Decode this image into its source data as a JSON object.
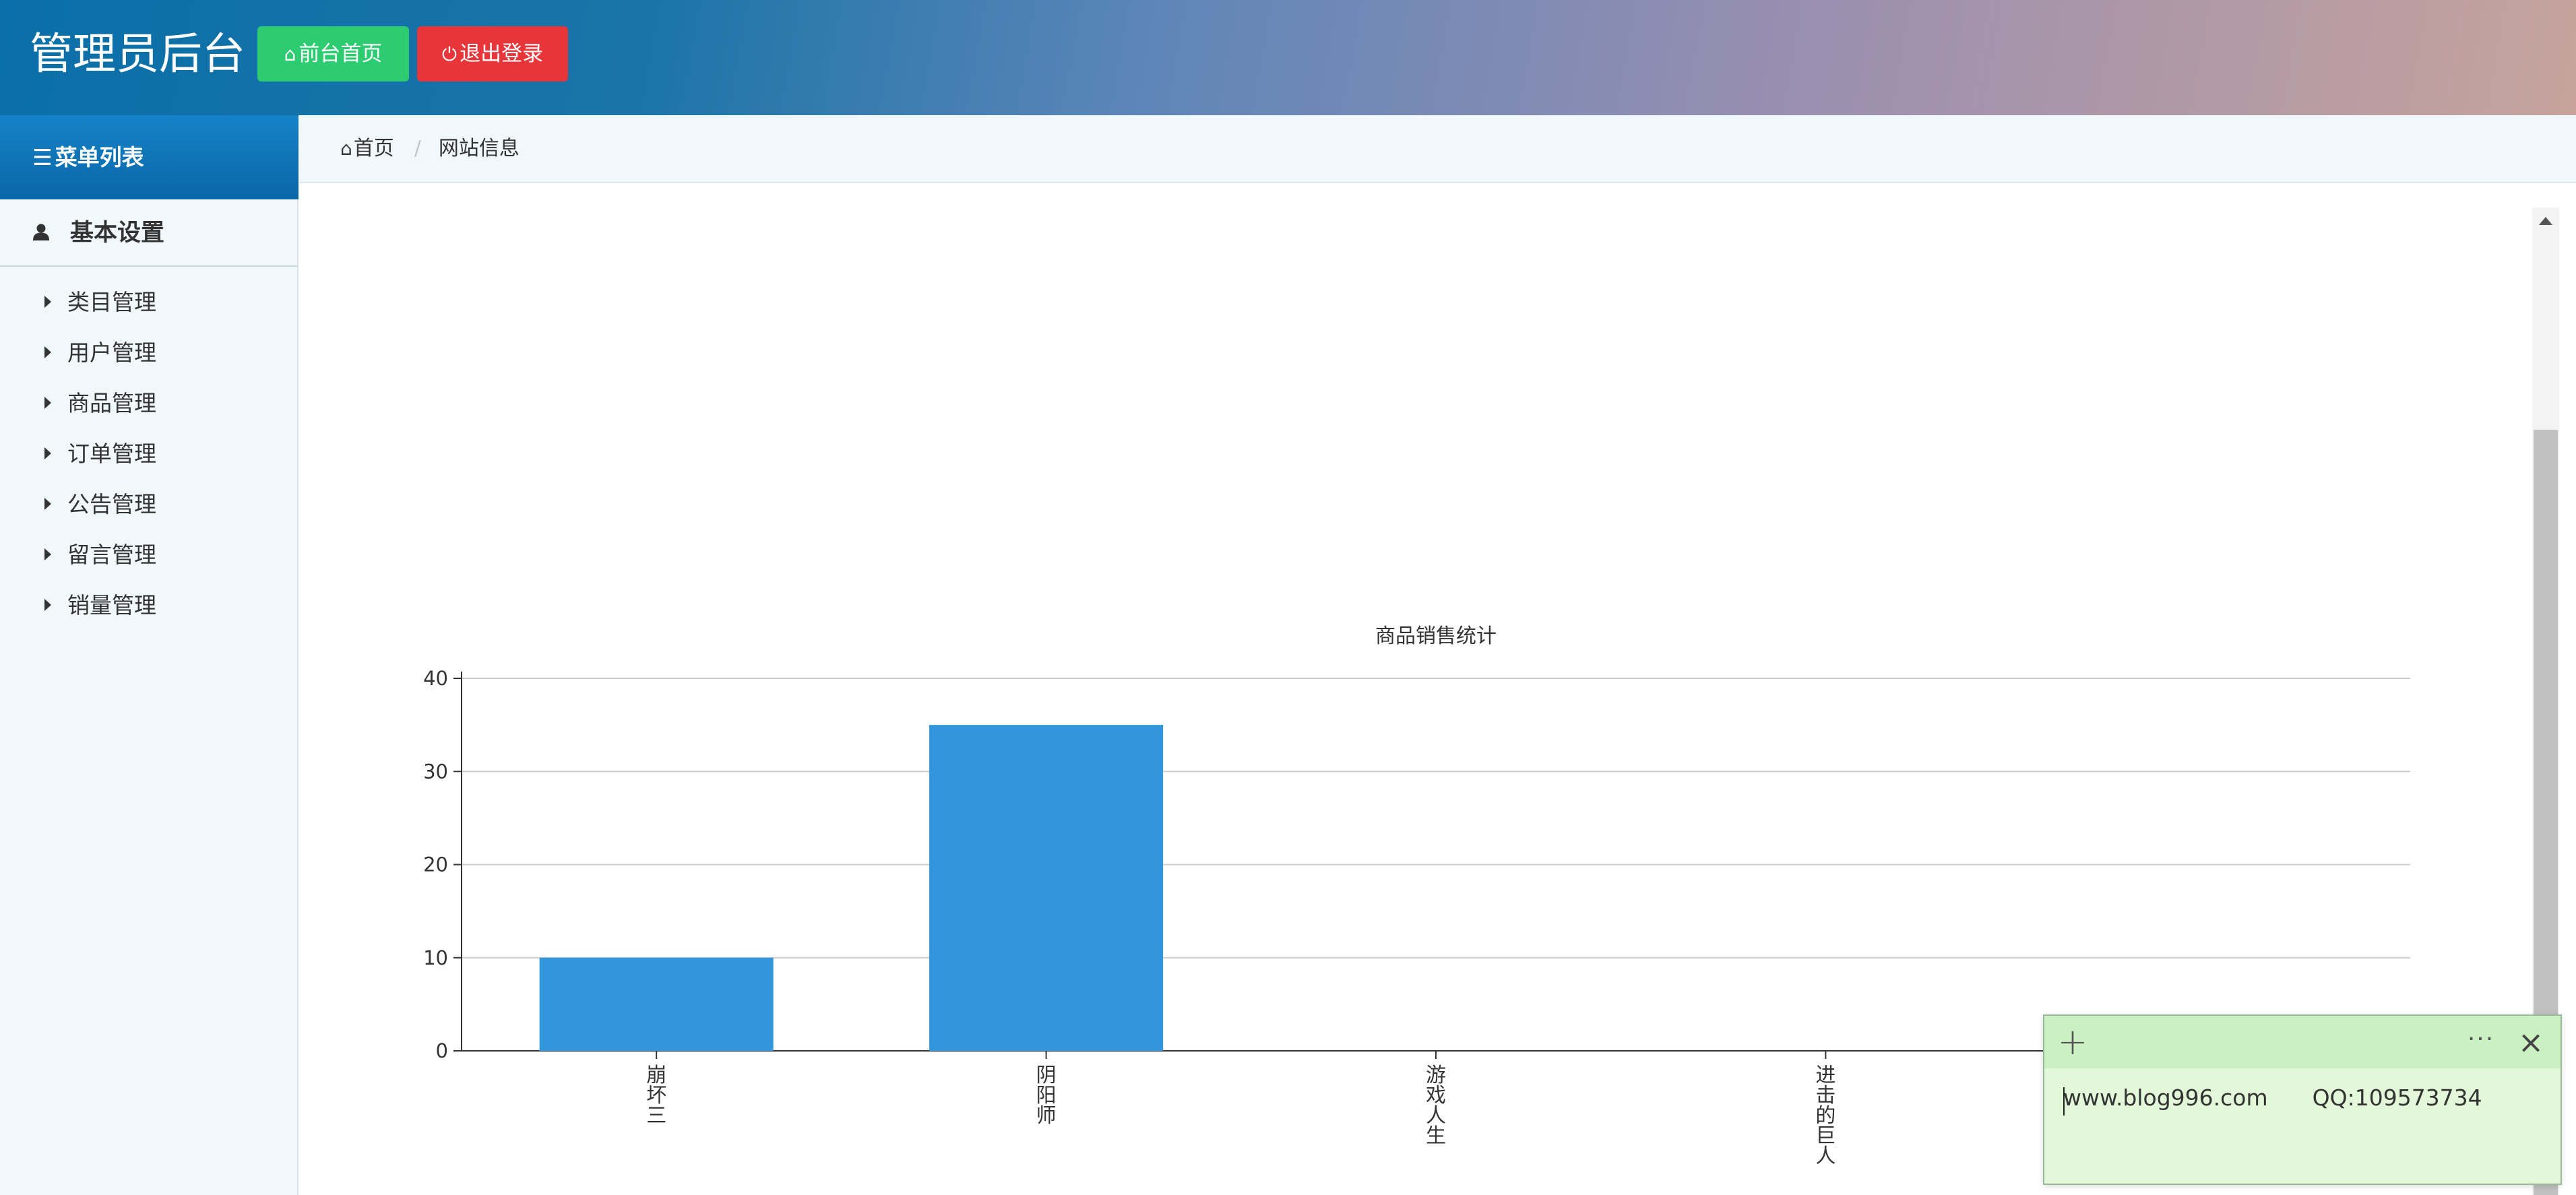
{
  "header": {
    "brand": "管理员后台",
    "home_button": "前台首页",
    "logout_button": "退出登录"
  },
  "sidebar": {
    "title": "菜单列表",
    "group": "基本设置",
    "items": [
      {
        "label": "类目管理"
      },
      {
        "label": "用户管理"
      },
      {
        "label": "商品管理"
      },
      {
        "label": "订单管理"
      },
      {
        "label": "公告管理"
      },
      {
        "label": "留言管理"
      },
      {
        "label": "销量管理"
      }
    ]
  },
  "breadcrumb": {
    "home": "首页",
    "current": "网站信息"
  },
  "note": {
    "website": "www.blog996.com",
    "qq": "QQ:109573734"
  },
  "colors": {
    "bar": "#3296dc",
    "home_button": "#2ecc71",
    "logout_button": "#e8353a"
  },
  "chart_data": {
    "type": "bar",
    "title": "商品销售统计",
    "categories": [
      "崩坏三",
      "阴阳师",
      "游戏人生",
      "进击的巨人",
      ""
    ],
    "values": [
      10,
      35,
      0,
      0,
      0
    ],
    "ylim": [
      0,
      40
    ],
    "yticks": [
      0,
      10,
      20,
      30,
      40
    ],
    "grid": true,
    "xlabel": "",
    "ylabel": ""
  }
}
